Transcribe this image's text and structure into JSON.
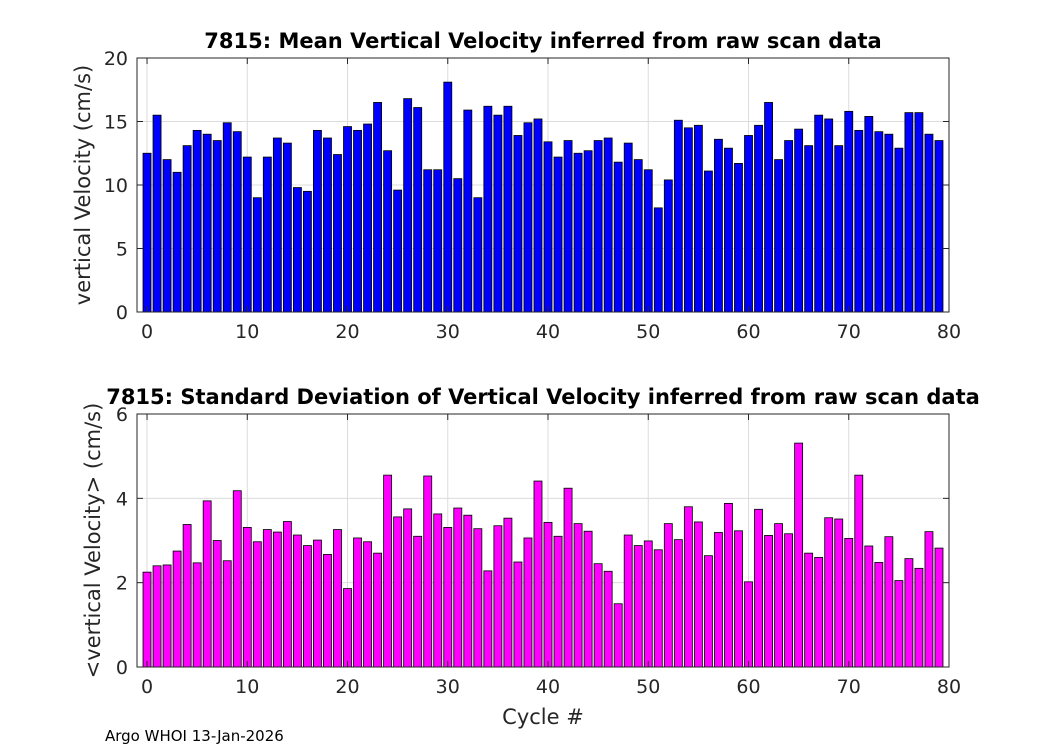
{
  "chart_data": [
    {
      "type": "bar",
      "title": "7815: Mean Vertical Velocity inferred from raw scan data",
      "xlabel": "",
      "ylabel": "vertical Velocity (cm/s)",
      "xlim": [
        -1,
        80
      ],
      "ylim": [
        0,
        20
      ],
      "xticks": [
        0,
        10,
        20,
        30,
        40,
        50,
        60,
        70,
        80
      ],
      "yticks": [
        0,
        5,
        10,
        15,
        20
      ],
      "grid": true,
      "color": "#0000ff",
      "x": [
        0,
        1,
        2,
        3,
        4,
        5,
        6,
        7,
        8,
        9,
        10,
        11,
        12,
        13,
        14,
        15,
        16,
        17,
        18,
        19,
        20,
        21,
        22,
        23,
        24,
        25,
        26,
        27,
        28,
        29,
        30,
        31,
        32,
        33,
        34,
        35,
        36,
        37,
        38,
        39,
        40,
        41,
        42,
        43,
        44,
        45,
        46,
        47,
        48,
        49,
        50,
        51,
        52,
        53,
        54,
        55,
        56,
        57,
        58,
        59,
        60,
        61,
        62,
        63,
        64,
        65,
        66,
        67,
        68,
        69,
        70,
        71,
        72,
        73,
        74,
        75,
        76,
        77,
        78,
        79
      ],
      "values": [
        12.5,
        15.5,
        12.0,
        11.0,
        13.1,
        14.3,
        14.0,
        13.5,
        14.9,
        14.2,
        12.2,
        9.0,
        12.2,
        13.7,
        13.3,
        9.8,
        9.5,
        14.3,
        13.7,
        12.4,
        14.6,
        14.3,
        14.8,
        16.5,
        12.7,
        9.6,
        16.8,
        16.1,
        11.2,
        11.2,
        18.1,
        10.5,
        15.9,
        9.0,
        16.2,
        15.5,
        16.2,
        13.9,
        14.9,
        15.2,
        13.4,
        12.2,
        13.5,
        12.5,
        12.7,
        13.5,
        13.7,
        11.8,
        13.3,
        12.0,
        11.2,
        8.2,
        10.4,
        15.1,
        14.5,
        14.7,
        11.1,
        13.6,
        12.9,
        11.7,
        13.9,
        14.7,
        16.5,
        12.0,
        13.5,
        14.4,
        13.1,
        15.5,
        15.2,
        13.1,
        15.8,
        14.3,
        15.4,
        14.2,
        14.0,
        12.9,
        15.7,
        15.7,
        14.0,
        13.5
      ]
    },
    {
      "type": "bar",
      "title": "7815: Standard Deviation of Vertical Velocity inferred from raw scan data",
      "xlabel": "Cycle #",
      "ylabel": "<vertical Velocity> (cm/s)",
      "xlim": [
        -1,
        80
      ],
      "ylim": [
        0,
        6
      ],
      "xticks": [
        0,
        10,
        20,
        30,
        40,
        50,
        60,
        70,
        80
      ],
      "yticks": [
        0,
        2,
        4,
        6
      ],
      "grid": true,
      "color": "#ff00ff",
      "x": [
        0,
        1,
        2,
        3,
        4,
        5,
        6,
        7,
        8,
        9,
        10,
        11,
        12,
        13,
        14,
        15,
        16,
        17,
        18,
        19,
        20,
        21,
        22,
        23,
        24,
        25,
        26,
        27,
        28,
        29,
        30,
        31,
        32,
        33,
        34,
        35,
        36,
        37,
        38,
        39,
        40,
        41,
        42,
        43,
        44,
        45,
        46,
        47,
        48,
        49,
        50,
        51,
        52,
        53,
        54,
        55,
        56,
        57,
        58,
        59,
        60,
        61,
        62,
        63,
        64,
        65,
        66,
        67,
        68,
        69,
        70,
        71,
        72,
        73,
        74,
        75,
        76,
        77,
        78,
        79
      ],
      "values": [
        2.25,
        2.4,
        2.42,
        2.75,
        3.38,
        2.47,
        3.94,
        3.0,
        2.52,
        4.18,
        3.31,
        2.97,
        3.26,
        3.2,
        3.45,
        3.13,
        2.88,
        3.01,
        2.67,
        3.26,
        1.86,
        3.06,
        2.97,
        2.7,
        4.55,
        3.56,
        3.75,
        3.1,
        4.53,
        3.63,
        3.31,
        3.77,
        3.6,
        3.28,
        2.28,
        3.35,
        3.53,
        2.49,
        3.06,
        4.41,
        3.43,
        3.1,
        4.24,
        3.4,
        3.22,
        2.45,
        2.27,
        1.5,
        3.13,
        2.88,
        2.99,
        2.78,
        3.4,
        3.02,
        3.8,
        3.44,
        2.64,
        3.19,
        3.88,
        3.23,
        2.02,
        3.74,
        3.12,
        3.4,
        3.16,
        5.31,
        2.7,
        2.6,
        3.54,
        3.51,
        3.05,
        4.55,
        2.87,
        2.48,
        3.09,
        2.05,
        2.57,
        2.34,
        3.21,
        2.82
      ]
    }
  ],
  "footer": "Argo WHOI 13-Jan-2026"
}
